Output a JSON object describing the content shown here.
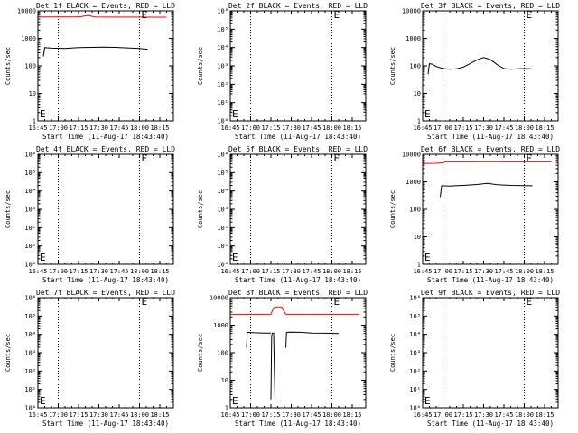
{
  "window": {
    "background": "#ffffff"
  },
  "colors": {
    "events": "#000000",
    "lld": "#ff0000",
    "frame": "#000000"
  },
  "chart_data": [
    {
      "type": "line",
      "title": "Det 1f BLACK = Events, RED = LLD",
      "xlabel": "Start Time (11-Aug-17 18:43:40)",
      "ylabel": "Counts/sec",
      "log_y": true,
      "ylim": [
        1,
        10000
      ],
      "y_tick_labels": [
        "1",
        "10",
        "100",
        "1000",
        "10000"
      ],
      "x_tick_labels": [
        "16:45",
        "17:00",
        "17:15",
        "17:30",
        "17:45",
        "18:00",
        "18:15"
      ],
      "x_tick_minutes": [
        0,
        15,
        30,
        45,
        60,
        75,
        90
      ],
      "xlim": [
        0,
        100
      ],
      "vlines": [
        15,
        75
      ],
      "markers": [
        {
          "label": "E",
          "x": 75
        },
        {
          "label": "E",
          "x": 0
        }
      ],
      "series": [
        {
          "name": "Events",
          "color": "#000000",
          "x": [
            4,
            5,
            10,
            20,
            30,
            40,
            48,
            56,
            66,
            75,
            81
          ],
          "y": [
            220,
            460,
            440,
            430,
            460,
            470,
            480,
            470,
            450,
            430,
            400
          ]
        },
        {
          "name": "LLD",
          "color": "#ff0000",
          "x": [
            0,
            20,
            30,
            37,
            42,
            50,
            65,
            80,
            95
          ],
          "y": [
            6000,
            6000,
            6050,
            6800,
            6000,
            5950,
            5950,
            5900,
            5900
          ]
        }
      ]
    },
    {
      "type": "line",
      "title": "Det 2f BLACK = Events, RED = LLD",
      "xlabel": "Start Time (11-Aug-17 18:43:40)",
      "ylabel": "Counts/sec",
      "log_y": true,
      "ylim": [
        1,
        1000000
      ],
      "y_tick_labels": [
        "10⁰",
        "10¹",
        "10²",
        "10³",
        "10⁴",
        "10⁵",
        "10⁶"
      ],
      "x_tick_labels": [
        "16:45",
        "17:00",
        "17:15",
        "17:30",
        "17:45",
        "18:00",
        "18:15"
      ],
      "x_tick_minutes": [
        0,
        15,
        30,
        45,
        60,
        75,
        90
      ],
      "xlim": [
        0,
        100
      ],
      "vlines": [
        15,
        75
      ],
      "markers": [
        {
          "label": "E",
          "x": 75
        },
        {
          "label": "E",
          "x": 0
        }
      ],
      "series": []
    },
    {
      "type": "line",
      "title": "Det 3f BLACK = Events, RED = LLD",
      "xlabel": "Start Time (11-Aug-17 18:43:40)",
      "ylabel": "Counts/sec",
      "log_y": true,
      "ylim": [
        1,
        10000
      ],
      "y_tick_labels": [
        "1",
        "10",
        "100",
        "1000",
        "10000"
      ],
      "x_tick_labels": [
        "16:45",
        "17:00",
        "17:15",
        "17:30",
        "17:45",
        "18:00",
        "18:15"
      ],
      "x_tick_minutes": [
        0,
        15,
        30,
        45,
        60,
        75,
        90
      ],
      "xlim": [
        0,
        100
      ],
      "vlines": [
        15,
        75
      ],
      "markers": [
        {
          "label": "E",
          "x": 75
        },
        {
          "label": "E",
          "x": 0
        }
      ],
      "series": [
        {
          "name": "Events",
          "color": "#000000",
          "x": [
            4,
            5,
            7,
            10,
            15,
            20,
            25,
            30,
            35,
            40,
            45,
            50,
            55,
            60,
            65,
            70,
            75,
            80
          ],
          "y": [
            50,
            120,
            115,
            95,
            80,
            75,
            78,
            90,
            120,
            165,
            200,
            170,
            110,
            80,
            75,
            78,
            80,
            78
          ]
        }
      ]
    },
    {
      "type": "line",
      "title": "Det 4f BLACK = Events, RED = LLD",
      "xlabel": "Start Time (11-Aug-17 18:43:40)",
      "ylabel": "Counts/sec",
      "log_y": true,
      "ylim": [
        1,
        1000000
      ],
      "y_tick_labels": [
        "10⁰",
        "10¹",
        "10²",
        "10³",
        "10⁴",
        "10⁵",
        "10⁶"
      ],
      "x_tick_labels": [
        "16:45",
        "17:00",
        "17:15",
        "17:30",
        "17:45",
        "18:00",
        "18:15"
      ],
      "x_tick_minutes": [
        0,
        15,
        30,
        45,
        60,
        75,
        90
      ],
      "xlim": [
        0,
        100
      ],
      "vlines": [
        15,
        75
      ],
      "markers": [
        {
          "label": "E",
          "x": 75
        },
        {
          "label": "E",
          "x": 0
        }
      ],
      "series": []
    },
    {
      "type": "line",
      "title": "Det 5f BLACK = Events, RED = LLD",
      "xlabel": "Start Time (11-Aug-17 18:43:40)",
      "ylabel": "Counts/sec",
      "log_y": true,
      "ylim": [
        1,
        1000000
      ],
      "y_tick_labels": [
        "10⁰",
        "10¹",
        "10²",
        "10³",
        "10⁴",
        "10⁵",
        "10⁶"
      ],
      "x_tick_labels": [
        "16:45",
        "17:00",
        "17:15",
        "17:30",
        "17:45",
        "18:00",
        "18:15"
      ],
      "x_tick_minutes": [
        0,
        15,
        30,
        45,
        60,
        75,
        90
      ],
      "xlim": [
        0,
        100
      ],
      "vlines": [
        15,
        75
      ],
      "markers": [
        {
          "label": "E",
          "x": 75
        },
        {
          "label": "E",
          "x": 0
        }
      ],
      "series": []
    },
    {
      "type": "line",
      "title": "Det 6f BLACK = Events, RED = LLD",
      "xlabel": "Start Time (11-Aug-17 18:43:40)",
      "ylabel": "Counts/sec",
      "log_y": true,
      "ylim": [
        1,
        10000
      ],
      "y_tick_labels": [
        "1",
        "10",
        "100",
        "1000",
        "10000"
      ],
      "x_tick_labels": [
        "16:45",
        "17:00",
        "17:15",
        "17:30",
        "17:45",
        "18:00",
        "18:15"
      ],
      "x_tick_minutes": [
        0,
        15,
        30,
        45,
        60,
        75,
        90
      ],
      "xlim": [
        0,
        100
      ],
      "vlines": [
        15,
        75
      ],
      "markers": [
        {
          "label": "E",
          "x": 75
        },
        {
          "label": "E",
          "x": 0
        }
      ],
      "series": [
        {
          "name": "Events",
          "color": "#000000",
          "x": [
            13,
            14,
            20,
            30,
            40,
            48,
            55,
            65,
            75,
            81
          ],
          "y": [
            280,
            720,
            700,
            740,
            800,
            880,
            780,
            740,
            730,
            720
          ]
        },
        {
          "name": "LLD",
          "color": "#ff0000",
          "x": [
            0,
            10,
            15,
            17,
            30,
            50,
            70,
            90,
            95
          ],
          "y": [
            4600,
            4700,
            4900,
            5300,
            5300,
            5350,
            5300,
            5300,
            5300
          ]
        }
      ]
    },
    {
      "type": "line",
      "title": "Det 7f BLACK = Events, RED = LLD",
      "xlabel": "Start Time (11-Aug-17 18:43:40)",
      "ylabel": "Counts/sec",
      "log_y": true,
      "ylim": [
        1,
        1000000
      ],
      "y_tick_labels": [
        "10⁰",
        "10¹",
        "10²",
        "10³",
        "10⁴",
        "10⁵",
        "10⁶"
      ],
      "x_tick_labels": [
        "16:45",
        "17:00",
        "17:15",
        "17:30",
        "17:45",
        "18:00",
        "18:15"
      ],
      "x_tick_minutes": [
        0,
        15,
        30,
        45,
        60,
        75,
        90
      ],
      "xlim": [
        0,
        100
      ],
      "vlines": [
        15,
        75
      ],
      "markers": [
        {
          "label": "E",
          "x": 75
        },
        {
          "label": "E",
          "x": 0
        }
      ],
      "series": []
    },
    {
      "type": "line",
      "title": "Det 8f BLACK = Events, RED = LLD",
      "xlabel": "Start Time (11-Aug-17 18:43:40)",
      "ylabel": "Counts/sec",
      "log_y": true,
      "ylim": [
        1,
        10000
      ],
      "y_tick_labels": [
        "1",
        "10",
        "100",
        "1000",
        "10000"
      ],
      "x_tick_labels": [
        "16:45",
        "17:00",
        "17:15",
        "17:30",
        "17:45",
        "18:00",
        "18:15"
      ],
      "x_tick_minutes": [
        0,
        15,
        30,
        45,
        60,
        75,
        90
      ],
      "xlim": [
        0,
        100
      ],
      "vlines": [
        15,
        75
      ],
      "markers": [
        {
          "label": "E",
          "x": 75
        },
        {
          "label": "E",
          "x": 0
        }
      ],
      "series": [
        {
          "name": "Events",
          "color": "#000000",
          "x": [
            12,
            12.5,
            18,
            25,
            30
          ],
          "y": [
            150,
            550,
            530,
            520,
            520
          ]
        },
        {
          "name": "Events",
          "color": "#000000",
          "x": [
            30,
            30.5,
            31,
            32,
            33
          ],
          "y": [
            2,
            400,
            520,
            520,
            2
          ]
        },
        {
          "name": "Events",
          "color": "#000000",
          "x": [
            41,
            41.5,
            45,
            52,
            60,
            70,
            80
          ],
          "y": [
            150,
            550,
            560,
            550,
            520,
            510,
            500
          ]
        },
        {
          "name": "LLD",
          "color": "#ff0000",
          "x": [
            0,
            15,
            30,
            31,
            32,
            33,
            38,
            39,
            41,
            45,
            60,
            80,
            95
          ],
          "y": [
            2500,
            2500,
            2500,
            3300,
            4200,
            4600,
            4600,
            3600,
            2500,
            2500,
            2500,
            2500,
            2500
          ]
        }
      ]
    },
    {
      "type": "line",
      "title": "Det 9f BLACK = Events, RED = LLD",
      "xlabel": "Start Time (11-Aug-17 18:43:40)",
      "ylabel": "Counts/sec",
      "log_y": true,
      "ylim": [
        1,
        1000000
      ],
      "y_tick_labels": [
        "10⁰",
        "10¹",
        "10²",
        "10³",
        "10⁴",
        "10⁵",
        "10⁶"
      ],
      "x_tick_labels": [
        "16:45",
        "17:00",
        "17:15",
        "17:30",
        "17:45",
        "18:00",
        "18:15"
      ],
      "x_tick_minutes": [
        0,
        15,
        30,
        45,
        60,
        75,
        90
      ],
      "xlim": [
        0,
        100
      ],
      "vlines": [
        15,
        75
      ],
      "markers": [
        {
          "label": "E",
          "x": 75
        },
        {
          "label": "E",
          "x": 0
        }
      ],
      "series": []
    }
  ]
}
